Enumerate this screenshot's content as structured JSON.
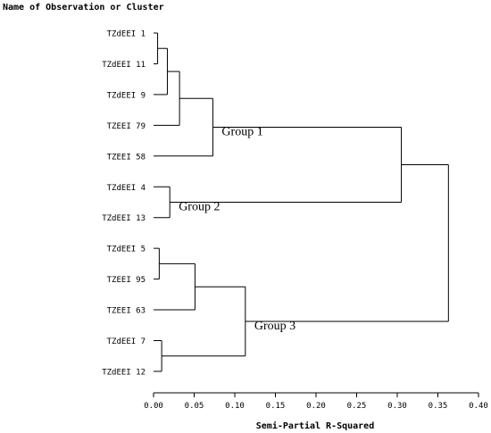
{
  "chart_data": {
    "type": "dendrogram",
    "title": "Name of Observation or Cluster",
    "xlabel": "Semi-Partial R-Squared",
    "xlim": [
      0.0,
      0.4
    ],
    "xticks": [
      "0.00",
      "0.05",
      "0.10",
      "0.15",
      "0.20",
      "0.25",
      "0.30",
      "0.35",
      "0.40"
    ],
    "leaves": [
      "TZdEEI 1",
      "TZdEEI 11",
      "TZdEEI 9",
      "TZEEI 79",
      "TZEEI 58",
      "TZdEEI 4",
      "TZdEEI 13",
      "TZdEEI 5",
      "TZEEI 95",
      "TZEEI 63",
      "TZdEEI 7",
      "TZdEEI 12"
    ],
    "merges": [
      {
        "id": "c1",
        "left": "TZdEEI 1",
        "right": "TZdEEI 11",
        "height": 0.005
      },
      {
        "id": "c2",
        "left": "c1",
        "right": "TZdEEI 9",
        "height": 0.017
      },
      {
        "id": "c3",
        "left": "c2",
        "right": "TZEEI 79",
        "height": 0.032
      },
      {
        "id": "c4",
        "left": "c3",
        "right": "TZEEI 58",
        "height": 0.073
      },
      {
        "id": "c5",
        "left": "TZdEEI 4",
        "right": "TZdEEI 13",
        "height": 0.02
      },
      {
        "id": "c6",
        "left": "c4",
        "right": "c5",
        "height": 0.305
      },
      {
        "id": "c7",
        "left": "TZdEEI 5",
        "right": "TZEEI 95",
        "height": 0.007
      },
      {
        "id": "c8",
        "left": "c7",
        "right": "TZEEI 63",
        "height": 0.051
      },
      {
        "id": "c9",
        "left": "TZdEEI 7",
        "right": "TZdEEI 12",
        "height": 0.01
      },
      {
        "id": "c10",
        "left": "c8",
        "right": "c9",
        "height": 0.113
      },
      {
        "id": "c11",
        "left": "c6",
        "right": "c10",
        "height": 0.363
      }
    ],
    "groups": [
      {
        "label": "Group 1",
        "cluster": "c4"
      },
      {
        "label": "Group 2",
        "cluster": "c5"
      },
      {
        "label": "Group 3",
        "cluster": "c10"
      }
    ],
    "orientation": "horizontal",
    "grid": false
  }
}
